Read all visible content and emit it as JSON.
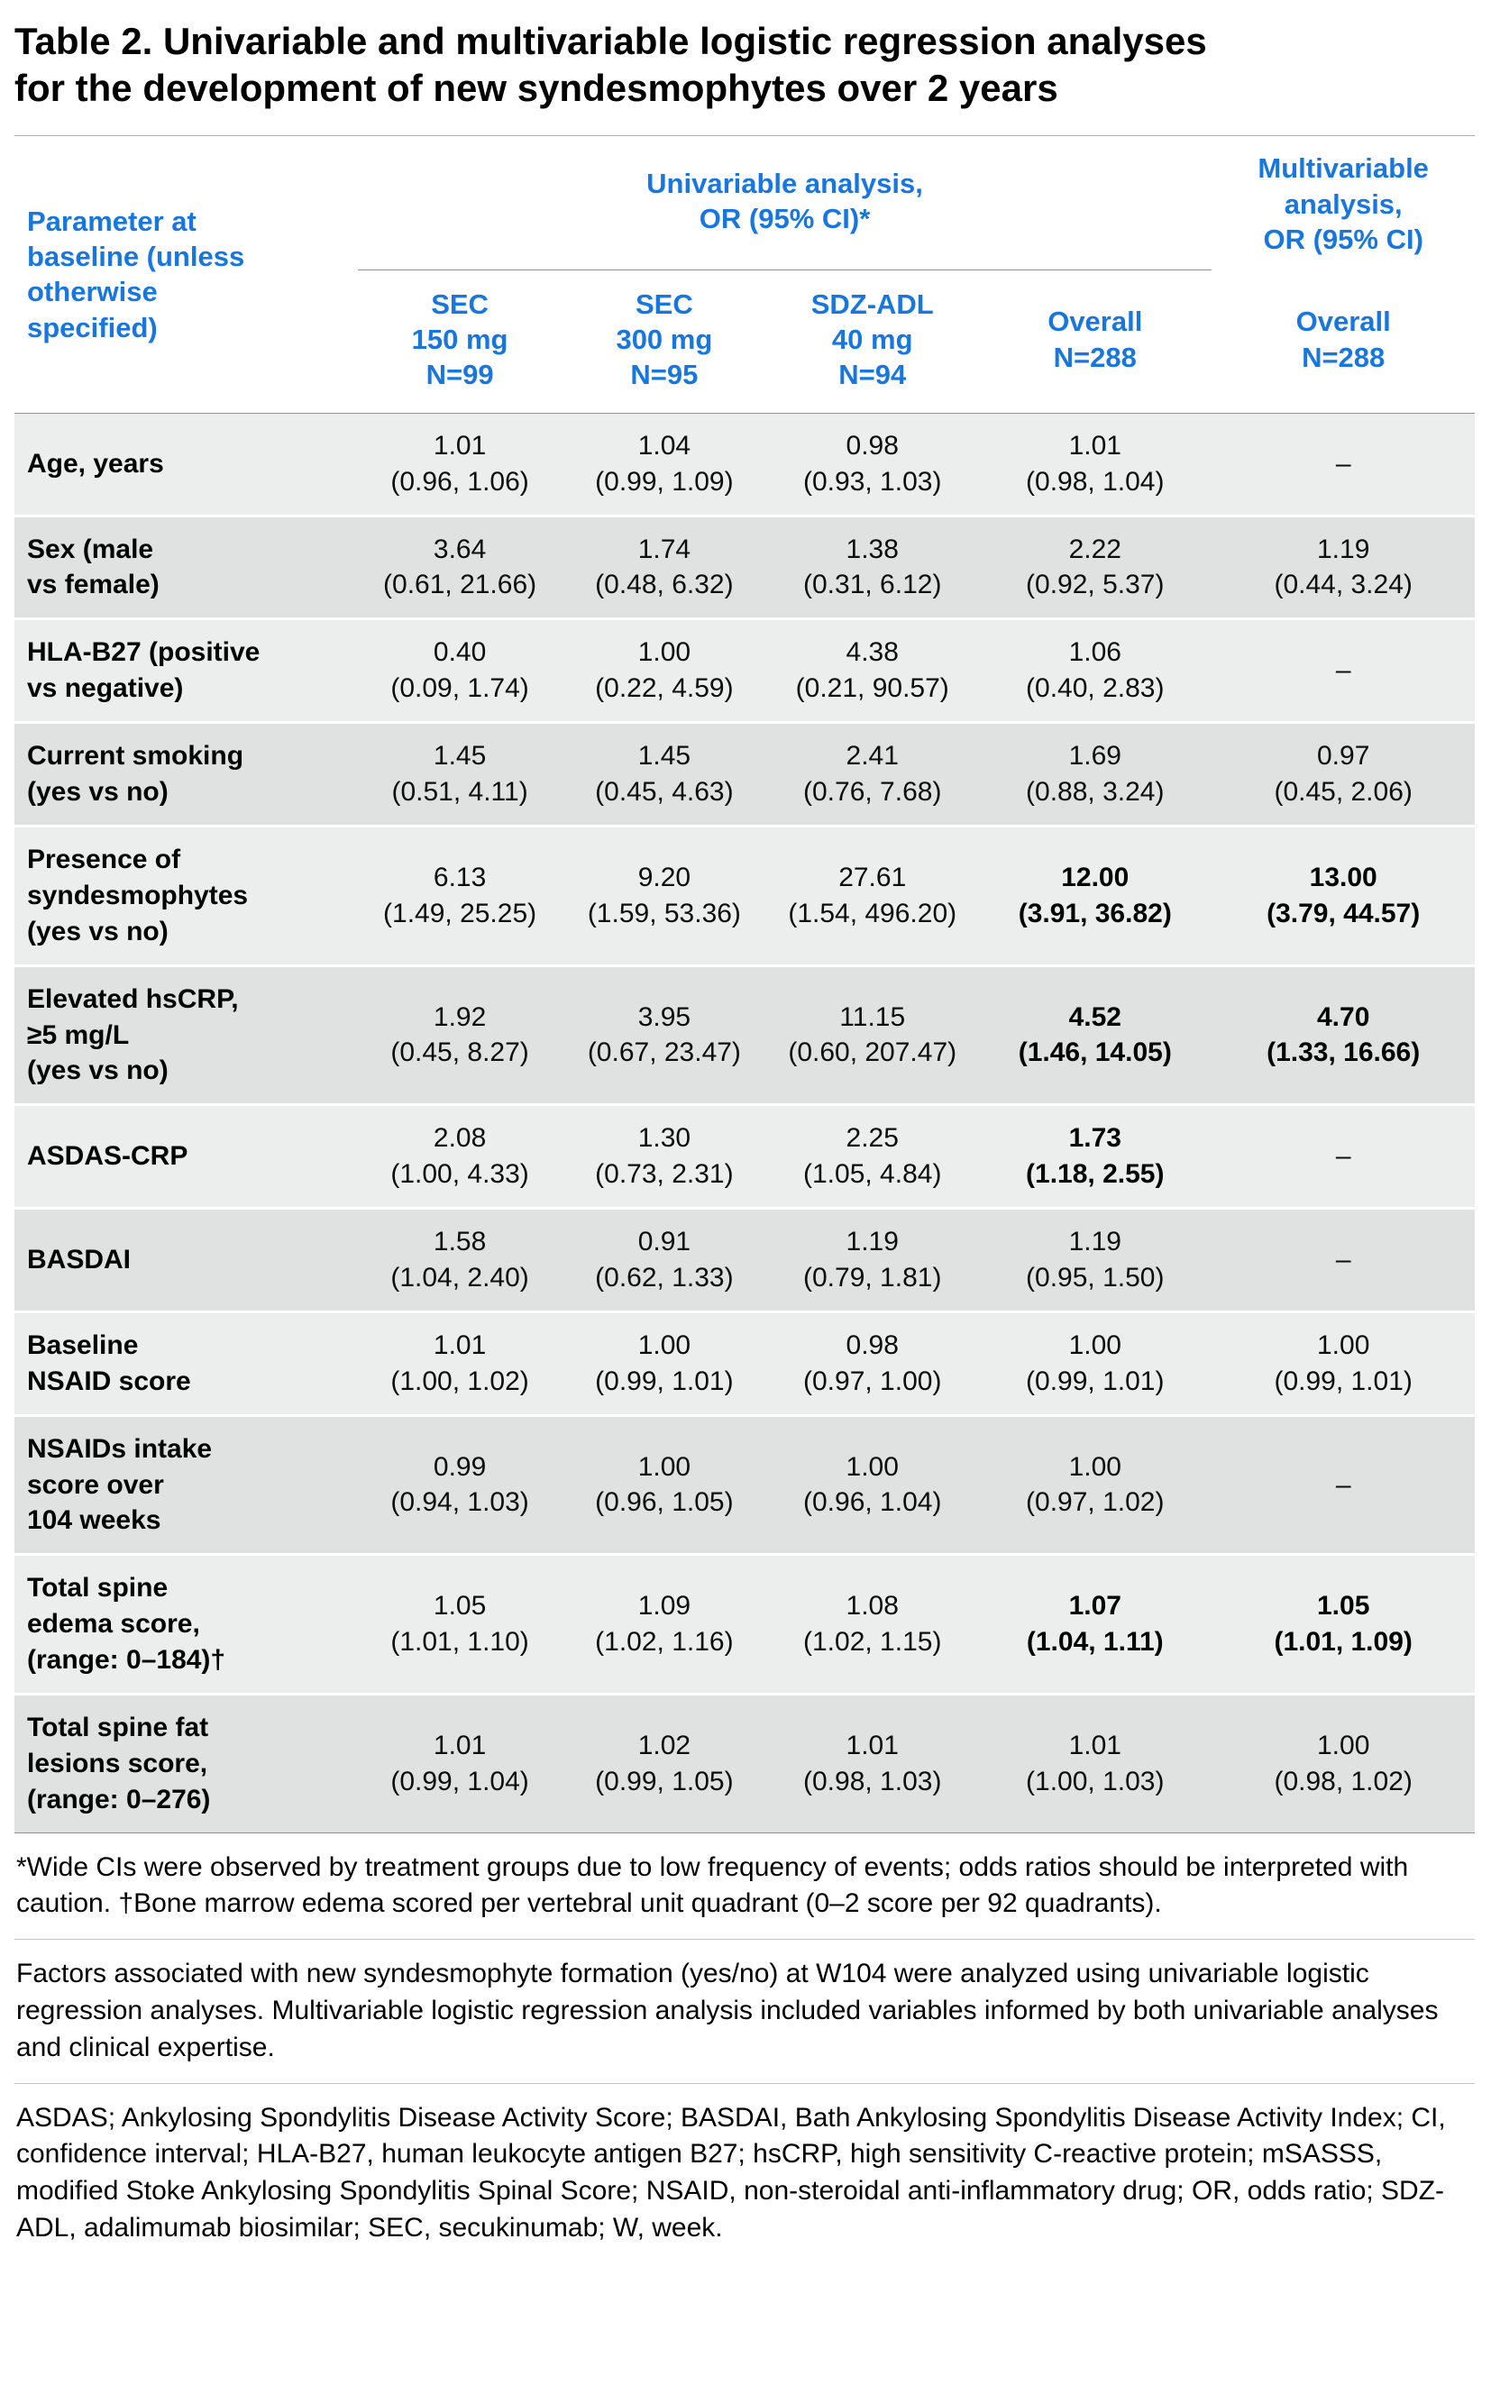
{
  "title": "Table 2. Univariable and multivariable logistic regression analyses\nfor the development of new syndesmophytes over 2 years",
  "colors": {
    "accent_blue": "#1777DF",
    "row_light": "#ECEEED",
    "row_dark": "#E0E2E1"
  },
  "header": {
    "parameter": "Parameter at\nbaseline (unless\notherwise\nspecified)",
    "univariable_group": "Univariable analysis,\nOR (95% CI)*",
    "multivariable_group": "Multivariable\nanalysis,\nOR (95% CI)",
    "columns": [
      "SEC\n150 mg\nN=99",
      "SEC\n300 mg\nN=95",
      "SDZ-ADL\n40 mg\nN=94",
      "Overall\nN=288",
      "Overall\nN=288"
    ]
  },
  "rows": [
    {
      "label": "Age, years",
      "cells": [
        {
          "text": "1.01\n(0.96, 1.06)",
          "bold": false
        },
        {
          "text": "1.04\n(0.99, 1.09)",
          "bold": false
        },
        {
          "text": "0.98\n(0.93, 1.03)",
          "bold": false
        },
        {
          "text": "1.01\n(0.98, 1.04)",
          "bold": false
        },
        {
          "text": "–",
          "bold": false
        }
      ]
    },
    {
      "label": "Sex (male\nvs female)",
      "cells": [
        {
          "text": "3.64\n(0.61, 21.66)",
          "bold": false
        },
        {
          "text": "1.74\n(0.48, 6.32)",
          "bold": false
        },
        {
          "text": "1.38\n(0.31, 6.12)",
          "bold": false
        },
        {
          "text": "2.22\n(0.92, 5.37)",
          "bold": false
        },
        {
          "text": "1.19\n(0.44, 3.24)",
          "bold": false
        }
      ]
    },
    {
      "label": "HLA-B27 (positive\nvs negative)",
      "cells": [
        {
          "text": "0.40\n(0.09, 1.74)",
          "bold": false
        },
        {
          "text": "1.00\n(0.22, 4.59)",
          "bold": false
        },
        {
          "text": "4.38\n(0.21, 90.57)",
          "bold": false
        },
        {
          "text": "1.06\n(0.40, 2.83)",
          "bold": false
        },
        {
          "text": "–",
          "bold": false
        }
      ]
    },
    {
      "label": "Current smoking\n(yes vs no)",
      "cells": [
        {
          "text": "1.45\n(0.51, 4.11)",
          "bold": false
        },
        {
          "text": "1.45\n(0.45, 4.63)",
          "bold": false
        },
        {
          "text": "2.41\n(0.76, 7.68)",
          "bold": false
        },
        {
          "text": "1.69\n(0.88, 3.24)",
          "bold": false
        },
        {
          "text": "0.97\n(0.45, 2.06)",
          "bold": false
        }
      ]
    },
    {
      "label": "Presence of\nsyndesmophytes\n(yes vs no)",
      "cells": [
        {
          "text": "6.13\n(1.49, 25.25)",
          "bold": false
        },
        {
          "text": "9.20\n(1.59, 53.36)",
          "bold": false
        },
        {
          "text": "27.61\n(1.54, 496.20)",
          "bold": false
        },
        {
          "text": "12.00\n(3.91, 36.82)",
          "bold": true
        },
        {
          "text": "13.00\n(3.79, 44.57)",
          "bold": true
        }
      ]
    },
    {
      "label": "Elevated hsCRP,\n≥5 mg/L\n(yes vs no)",
      "cells": [
        {
          "text": "1.92\n(0.45, 8.27)",
          "bold": false
        },
        {
          "text": "3.95\n(0.67, 23.47)",
          "bold": false
        },
        {
          "text": "11.15\n(0.60, 207.47)",
          "bold": false
        },
        {
          "text": "4.52\n(1.46, 14.05)",
          "bold": true
        },
        {
          "text": "4.70\n(1.33, 16.66)",
          "bold": true
        }
      ]
    },
    {
      "label": "ASDAS-CRP",
      "cells": [
        {
          "text": "2.08\n(1.00, 4.33)",
          "bold": false
        },
        {
          "text": "1.30\n(0.73, 2.31)",
          "bold": false
        },
        {
          "text": "2.25\n(1.05, 4.84)",
          "bold": false
        },
        {
          "text": "1.73\n(1.18, 2.55)",
          "bold": true
        },
        {
          "text": "–",
          "bold": false
        }
      ]
    },
    {
      "label": "BASDAI",
      "cells": [
        {
          "text": "1.58\n(1.04, 2.40)",
          "bold": false
        },
        {
          "text": "0.91\n(0.62, 1.33)",
          "bold": false
        },
        {
          "text": "1.19\n(0.79, 1.81)",
          "bold": false
        },
        {
          "text": "1.19\n(0.95, 1.50)",
          "bold": false
        },
        {
          "text": "–",
          "bold": false
        }
      ]
    },
    {
      "label": "Baseline\nNSAID score",
      "cells": [
        {
          "text": "1.01\n(1.00, 1.02)",
          "bold": false
        },
        {
          "text": "1.00\n(0.99, 1.01)",
          "bold": false
        },
        {
          "text": "0.98\n(0.97, 1.00)",
          "bold": false
        },
        {
          "text": "1.00\n(0.99, 1.01)",
          "bold": false
        },
        {
          "text": "1.00\n(0.99, 1.01)",
          "bold": false
        }
      ]
    },
    {
      "label": "NSAIDs intake\nscore over\n104 weeks",
      "cells": [
        {
          "text": "0.99\n(0.94, 1.03)",
          "bold": false
        },
        {
          "text": "1.00\n(0.96, 1.05)",
          "bold": false
        },
        {
          "text": "1.00\n(0.96, 1.04)",
          "bold": false
        },
        {
          "text": "1.00\n(0.97, 1.02)",
          "bold": false
        },
        {
          "text": "–",
          "bold": false
        }
      ]
    },
    {
      "label": "Total spine\nedema score,\n(range: 0–184)†",
      "cells": [
        {
          "text": "1.05\n(1.01, 1.10)",
          "bold": false
        },
        {
          "text": "1.09\n(1.02, 1.16)",
          "bold": false
        },
        {
          "text": "1.08\n(1.02, 1.15)",
          "bold": false
        },
        {
          "text": "1.07\n(1.04, 1.11)",
          "bold": true
        },
        {
          "text": "1.05\n(1.01, 1.09)",
          "bold": true
        }
      ]
    },
    {
      "label": "Total spine fat\nlesions score,\n(range: 0–276)",
      "cells": [
        {
          "text": "1.01\n(0.99, 1.04)",
          "bold": false
        },
        {
          "text": "1.02\n(0.99, 1.05)",
          "bold": false
        },
        {
          "text": "1.01\n(0.98, 1.03)",
          "bold": false
        },
        {
          "text": "1.01\n(1.00, 1.03)",
          "bold": false
        },
        {
          "text": "1.00\n(0.98, 1.02)",
          "bold": false
        }
      ]
    }
  ],
  "footnotes": [
    "*Wide CIs were observed by treatment groups due to low frequency of events; odds ratios should be interpreted with caution. †Bone marrow edema scored per vertebral unit quadrant (0–2 score per 92 quadrants).",
    "Factors associated with new syndesmophyte formation (yes/no) at W104 were analyzed using univariable logistic regression analyses. Multivariable logistic regression analysis included variables informed by both univariable analyses and clinical expertise.",
    "ASDAS; Ankylosing Spondylitis Disease Activity Score; BASDAI, Bath Ankylosing Spondylitis Disease Activity Index; CI, confidence interval; HLA-B27, human leukocyte antigen B27; hsCRP, high sensitivity C-reactive protein; mSASSS, modified Stoke Ankylosing Spondylitis Spinal Score; NSAID, non-steroidal anti-inflammatory drug; OR, odds ratio; SDZ-ADL, adalimumab biosimilar; SEC, secukinumab; W, week."
  ]
}
